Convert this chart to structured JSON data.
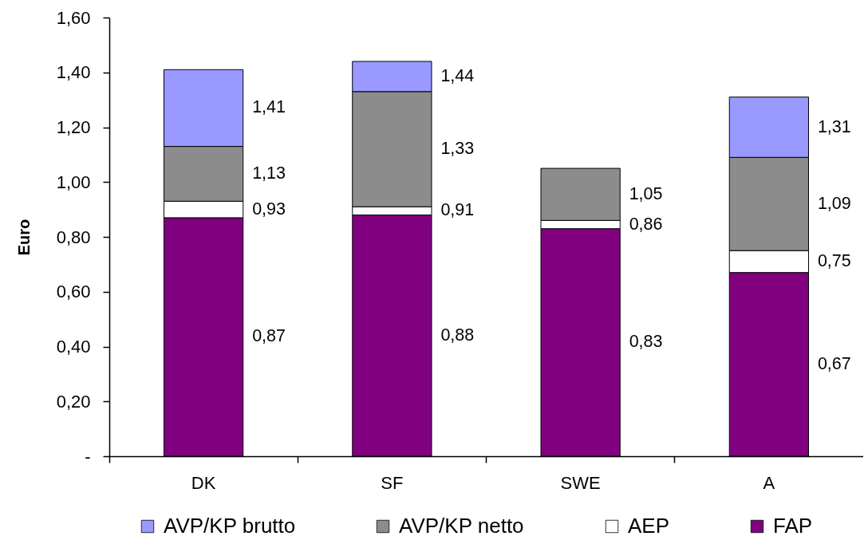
{
  "chart_data": {
    "type": "bar",
    "stacked": true,
    "categories": [
      "DK",
      "SF",
      "SWE",
      "A"
    ],
    "ylabel": "Euro",
    "ylim": [
      0,
      1.6
    ],
    "yticks": [
      {
        "value": 0,
        "label": "-"
      },
      {
        "value": 0.2,
        "label": "0,20"
      },
      {
        "value": 0.4,
        "label": "0,40"
      },
      {
        "value": 0.6,
        "label": "0,60"
      },
      {
        "value": 0.8,
        "label": "0,80"
      },
      {
        "value": 1.0,
        "label": "1,00"
      },
      {
        "value": 1.2,
        "label": "1,20"
      },
      {
        "value": 1.4,
        "label": "1,40"
      },
      {
        "value": 1.6,
        "label": "1,60"
      }
    ],
    "legend": "bottom",
    "series": [
      {
        "name": "FAP",
        "color": "#800080",
        "values": [
          0.87,
          0.88,
          0.83,
          0.67
        ]
      },
      {
        "name": "AEP",
        "color": "#ffffff",
        "values": [
          0.06,
          0.03,
          0.03,
          0.08
        ]
      },
      {
        "name": "AVP/KP netto",
        "color": "#8c8c8c",
        "values": [
          0.2,
          0.42,
          0.19,
          0.34
        ]
      },
      {
        "name": "AVP/KP brutto",
        "color": "#9999ff",
        "values": [
          0.28,
          0.11,
          null,
          0.22
        ]
      }
    ],
    "annotations": [
      "0,87",
      "0,93",
      "1,13",
      "1,41",
      "0,88",
      "0,91",
      "1,33",
      "1,44",
      "0,83",
      "0,86",
      "1,05",
      "0,67",
      "0,75",
      "1,09",
      "1,31"
    ]
  }
}
